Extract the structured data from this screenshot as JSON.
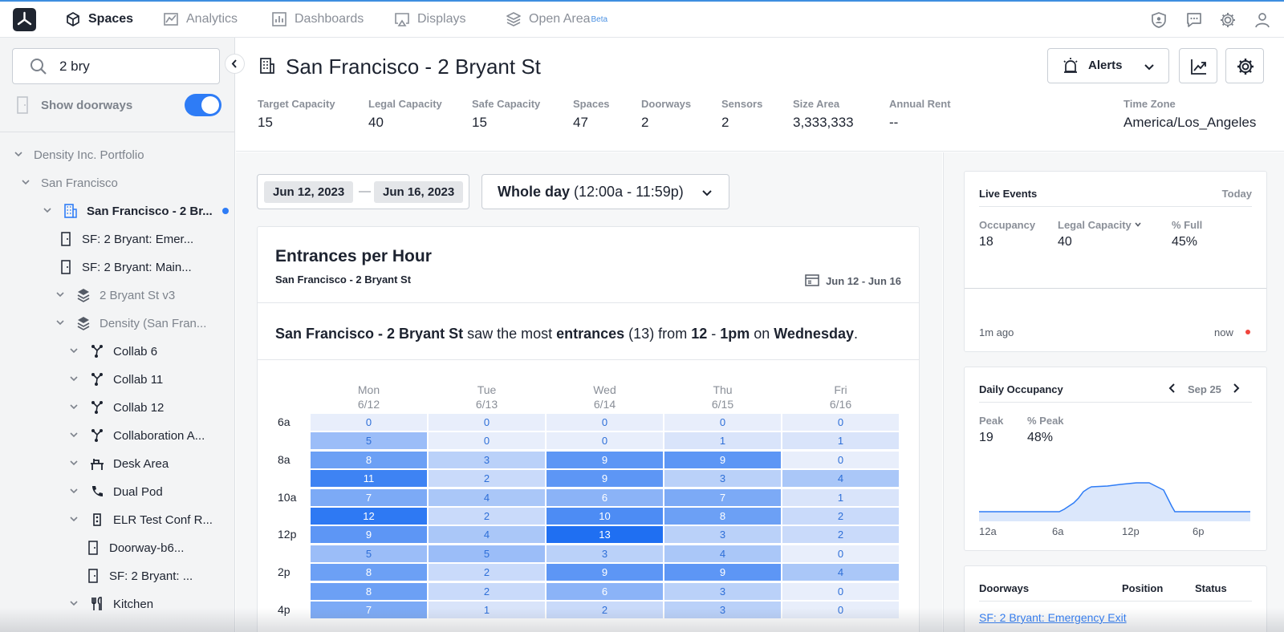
{
  "nav": {
    "items": [
      {
        "label": "Spaces",
        "icon": "cube-icon",
        "active": true
      },
      {
        "label": "Analytics",
        "icon": "analytics-icon",
        "active": false
      },
      {
        "label": "Dashboards",
        "icon": "dashboard-icon",
        "active": false
      },
      {
        "label": "Displays",
        "icon": "display-icon",
        "active": false
      },
      {
        "label": "Open Area",
        "icon": "layers-icon",
        "active": false,
        "badge": "Beta"
      }
    ],
    "right_icons": [
      "shield-user-icon",
      "chat-icon",
      "gear-icon",
      "user-icon"
    ]
  },
  "sidebar": {
    "search_value": "2 bry",
    "show_doorways_label": "Show doorways",
    "show_doorways_on": true,
    "tree": [
      {
        "label": "Density Inc. Portfolio",
        "icon": "",
        "chev": "expanded"
      },
      {
        "label": "San Francisco",
        "icon": "",
        "chev": "expanded"
      },
      {
        "label": "San Francisco - 2 Br...",
        "icon": "building-icon",
        "chev": "expanded",
        "selected": true
      },
      {
        "label": "SF: 2 Bryant: Emer...",
        "icon": "door-icon",
        "chev": ""
      },
      {
        "label": "SF: 2 Bryant: Main...",
        "icon": "door-icon",
        "chev": ""
      },
      {
        "label": "2 Bryant St v3",
        "icon": "layers-icon",
        "chev": "expanded"
      },
      {
        "label": "Density (San Fran...",
        "icon": "layers-icon",
        "chev": "expanded"
      },
      {
        "label": "Collab 6",
        "icon": "collab-icon",
        "chev": "expanded"
      },
      {
        "label": "Collab 11",
        "icon": "collab-icon",
        "chev": "expanded"
      },
      {
        "label": "Collab 12",
        "icon": "collab-icon",
        "chev": "expanded"
      },
      {
        "label": "Collaboration A...",
        "icon": "collab-icon",
        "chev": "expanded"
      },
      {
        "label": "Desk Area",
        "icon": "desk-icon",
        "chev": "expanded"
      },
      {
        "label": "Dual Pod",
        "icon": "phone-icon",
        "chev": "expanded"
      },
      {
        "label": "ELR Test Conf R...",
        "icon": "conference-icon",
        "chev": "expanded"
      },
      {
        "label": "Doorway-b6...",
        "icon": "door-icon",
        "chev": ""
      },
      {
        "label": "SF: 2 Bryant: ...",
        "icon": "door-icon",
        "chev": ""
      },
      {
        "label": "Kitchen",
        "icon": "kitchen-icon",
        "chev": "expanded"
      }
    ]
  },
  "header": {
    "title": "San Francisco - 2 Bryant St",
    "alerts_label": "Alerts",
    "stats": [
      {
        "label": "Target Capacity",
        "value": "15"
      },
      {
        "label": "Legal Capacity",
        "value": "40"
      },
      {
        "label": "Safe Capacity",
        "value": "15"
      },
      {
        "label": "Spaces",
        "value": "47"
      },
      {
        "label": "Doorways",
        "value": "2"
      },
      {
        "label": "Sensors",
        "value": "2"
      },
      {
        "label": "Size Area",
        "value": "3,333,333"
      },
      {
        "label": "Annual Rent",
        "value": "--"
      },
      {
        "label": "Time Zone",
        "value": "America/Los_Angeles"
      }
    ]
  },
  "filters": {
    "start_date": "Jun 12, 2023",
    "end_date": "Jun 16, 2023",
    "dash": "—",
    "time_bold": "Whole day",
    "time_range": "(12:00a - 11:59p)"
  },
  "entrances": {
    "title": "Entrances per Hour",
    "subtitle": "San Francisco - 2 Bryant St",
    "date_range": "Jun 12 - Jun 16",
    "summary": {
      "space": "San Francisco - 2 Bryant St",
      "t1": " saw the most ",
      "metric": "entrances",
      "t2": " (13) from ",
      "hour_start": "12",
      "t3": " - ",
      "hour_end": "1pm",
      "t4": " on ",
      "day": "Wednesday",
      "t5": "."
    }
  },
  "chart_data": {
    "type": "heatmap",
    "columns": [
      {
        "day": "Mon",
        "date": "6/12"
      },
      {
        "day": "Tue",
        "date": "6/13"
      },
      {
        "day": "Wed",
        "date": "6/14"
      },
      {
        "day": "Thu",
        "date": "6/15"
      },
      {
        "day": "Fri",
        "date": "6/16"
      }
    ],
    "row_labels": [
      "6a",
      "",
      "8a",
      "",
      "10a",
      "",
      "12p",
      "",
      "2p",
      "",
      "4p"
    ],
    "values": [
      [
        0,
        0,
        0,
        0,
        0
      ],
      [
        5,
        0,
        0,
        1,
        1
      ],
      [
        8,
        3,
        9,
        9,
        0
      ],
      [
        11,
        2,
        9,
        3,
        4
      ],
      [
        7,
        4,
        6,
        7,
        1
      ],
      [
        12,
        2,
        10,
        8,
        2
      ],
      [
        9,
        4,
        13,
        3,
        2
      ],
      [
        5,
        5,
        3,
        4,
        0
      ],
      [
        8,
        2,
        9,
        9,
        4
      ],
      [
        8,
        2,
        6,
        3,
        0
      ],
      [
        7,
        1,
        2,
        3,
        0
      ]
    ],
    "max": 13
  },
  "live_events": {
    "title": "Live Events",
    "today": "Today",
    "occupancy_label": "Occupancy",
    "occupancy_value": "18",
    "legal_label": "Legal Capacity",
    "legal_value": "40",
    "full_label": "% Full",
    "full_value": "45%",
    "time_start": "1m ago",
    "time_end": "now"
  },
  "daily_occupancy": {
    "title": "Daily Occupancy",
    "date": "Sep 25",
    "peak_label": "Peak",
    "peak_value": "19",
    "pct_peak_label": "% Peak",
    "pct_peak_value": "48%",
    "x_ticks": [
      "12a",
      "6a",
      "12p",
      "6p"
    ]
  },
  "doorways_table": {
    "col_doorways": "Doorways",
    "col_position": "Position",
    "col_status": "Status",
    "rows": [
      {
        "name": "SF: 2 Bryant: Emergency Exit"
      }
    ]
  },
  "colors": {
    "accent": "#2e7cf6",
    "heat_low": "#e8eefb",
    "heat_high": "#1f6ff2"
  }
}
